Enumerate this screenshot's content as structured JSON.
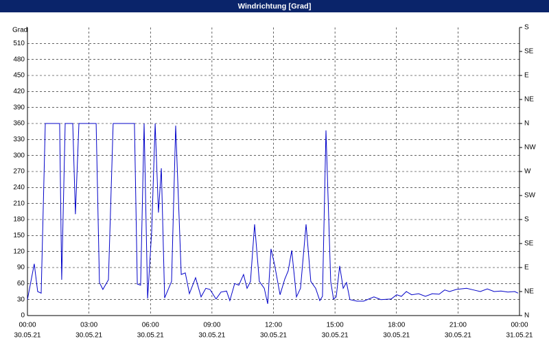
{
  "chart_data": {
    "type": "line",
    "title": "Windrichtung [Grad]",
    "y_label": "Grad",
    "color": "#0000c8",
    "grid": true,
    "x": [
      0,
      0.33,
      0.5,
      0.67,
      0.87,
      1.57,
      1.67,
      1.84,
      2.21,
      2.34,
      2.51,
      3.35,
      3.51,
      3.68,
      3.95,
      4.18,
      5.22,
      5.36,
      5.52,
      5.69,
      5.86,
      6.06,
      6.23,
      6.39,
      6.53,
      6.69,
      7.03,
      7.23,
      7.5,
      7.7,
      7.9,
      8.2,
      8.47,
      8.7,
      8.9,
      9.2,
      9.44,
      9.71,
      9.87,
      10.11,
      10.31,
      10.54,
      10.71,
      10.88,
      11.08,
      11.31,
      11.55,
      11.72,
      11.88,
      12.05,
      12.32,
      12.55,
      12.72,
      12.89,
      13.12,
      13.32,
      13.59,
      13.82,
      14.06,
      14.26,
      14.39,
      14.56,
      14.79,
      14.93,
      15.06,
      15.23,
      15.4,
      15.56,
      15.73,
      16.07,
      16.4,
      16.9,
      17.24,
      17.74,
      18.01,
      18.24,
      18.48,
      18.74,
      19.08,
      19.41,
      19.75,
      20.08,
      20.35,
      20.59,
      20.92,
      21.42,
      21.76,
      22.09,
      22.43,
      22.76,
      23.1,
      23.43,
      23.77,
      23.93
    ],
    "values": [
      30,
      97,
      45,
      42,
      360,
      360,
      67,
      360,
      360,
      190,
      360,
      360,
      62,
      49,
      67,
      360,
      360,
      59,
      57,
      360,
      32,
      157,
      360,
      193,
      276,
      33,
      64,
      356,
      77,
      80,
      41,
      71,
      35,
      51,
      49,
      31,
      44,
      46,
      28,
      60,
      57,
      77,
      51,
      64,
      171,
      64,
      51,
      22,
      125,
      96,
      39,
      68,
      84,
      122,
      35,
      51,
      171,
      64,
      51,
      28,
      36,
      347,
      64,
      31,
      35,
      93,
      51,
      62,
      30,
      27,
      27,
      35,
      30,
      31,
      39,
      36,
      45,
      39,
      41,
      36,
      41,
      40,
      48,
      45,
      49,
      51,
      48,
      45,
      50,
      45,
      46,
      44,
      45,
      42
    ],
    "xlim": [
      0,
      24
    ],
    "xticks": [
      {
        "value": 0,
        "label": "00:00"
      },
      {
        "value": 3,
        "label": "03:00"
      },
      {
        "value": 6,
        "label": "06:00"
      },
      {
        "value": 9,
        "label": "09:00"
      },
      {
        "value": 12,
        "label": "12:00"
      },
      {
        "value": 15,
        "label": "15:00"
      },
      {
        "value": 18,
        "label": "18:00"
      },
      {
        "value": 21,
        "label": "21:00"
      },
      {
        "value": 24,
        "label": "00:00"
      }
    ],
    "xtick_dates": [
      "30.05.21",
      "30.05.21",
      "30.05.21",
      "30.05.21",
      "30.05.21",
      "30.05.21",
      "30.05.21",
      "30.05.21",
      "31.05.21"
    ],
    "ylim": [
      0,
      540
    ],
    "yticks": [
      0,
      30,
      60,
      90,
      120,
      150,
      180,
      210,
      240,
      270,
      300,
      330,
      360,
      390,
      420,
      450,
      480,
      510
    ],
    "y2lim": [
      0,
      540
    ],
    "y2ticks": [
      {
        "value": 0,
        "label": "N"
      },
      {
        "value": 45,
        "label": "NE"
      },
      {
        "value": 90,
        "label": "E"
      },
      {
        "value": 135,
        "label": "SE"
      },
      {
        "value": 180,
        "label": "S"
      },
      {
        "value": 225,
        "label": "SW"
      },
      {
        "value": 270,
        "label": "W"
      },
      {
        "value": 315,
        "label": "NW"
      },
      {
        "value": 360,
        "label": "N"
      },
      {
        "value": 405,
        "label": "NE"
      },
      {
        "value": 450,
        "label": "E"
      },
      {
        "value": 495,
        "label": "SE"
      },
      {
        "value": 540,
        "label": "S"
      }
    ]
  }
}
